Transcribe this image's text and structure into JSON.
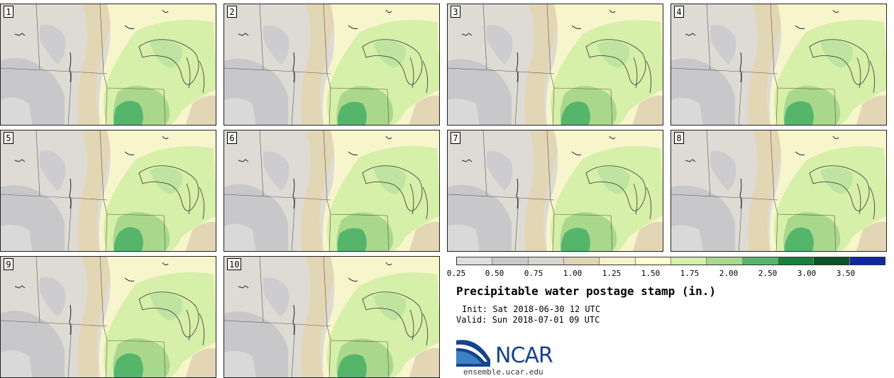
{
  "title": "Precipitable water postage stamp (in.)",
  "init": "Init: Sat 2018-06-30 12 UTC",
  "valid": "Valid: Sun 2018-07-01 09 UTC",
  "members": [
    "1",
    "2",
    "3",
    "4",
    "5",
    "6",
    "7",
    "8",
    "9",
    "10"
  ],
  "colorbar": {
    "ticks": [
      "0.25",
      "0.50",
      "0.75",
      "1.00",
      "1.25",
      "1.50",
      "1.75",
      "2.00",
      "2.50",
      "3.00",
      "3.50"
    ],
    "colors": [
      "#dedede",
      "#c9c9cb",
      "#d8d6d0",
      "#e2d5b3",
      "#f4f2c8",
      "#ffffcc",
      "#d6efa9",
      "#a9d88c",
      "#55b56b",
      "#17803a",
      "#0b5226",
      "#0c2aa8"
    ]
  },
  "logo": {
    "text": "NCAR",
    "url": "ensemble.ucar.edu"
  }
}
